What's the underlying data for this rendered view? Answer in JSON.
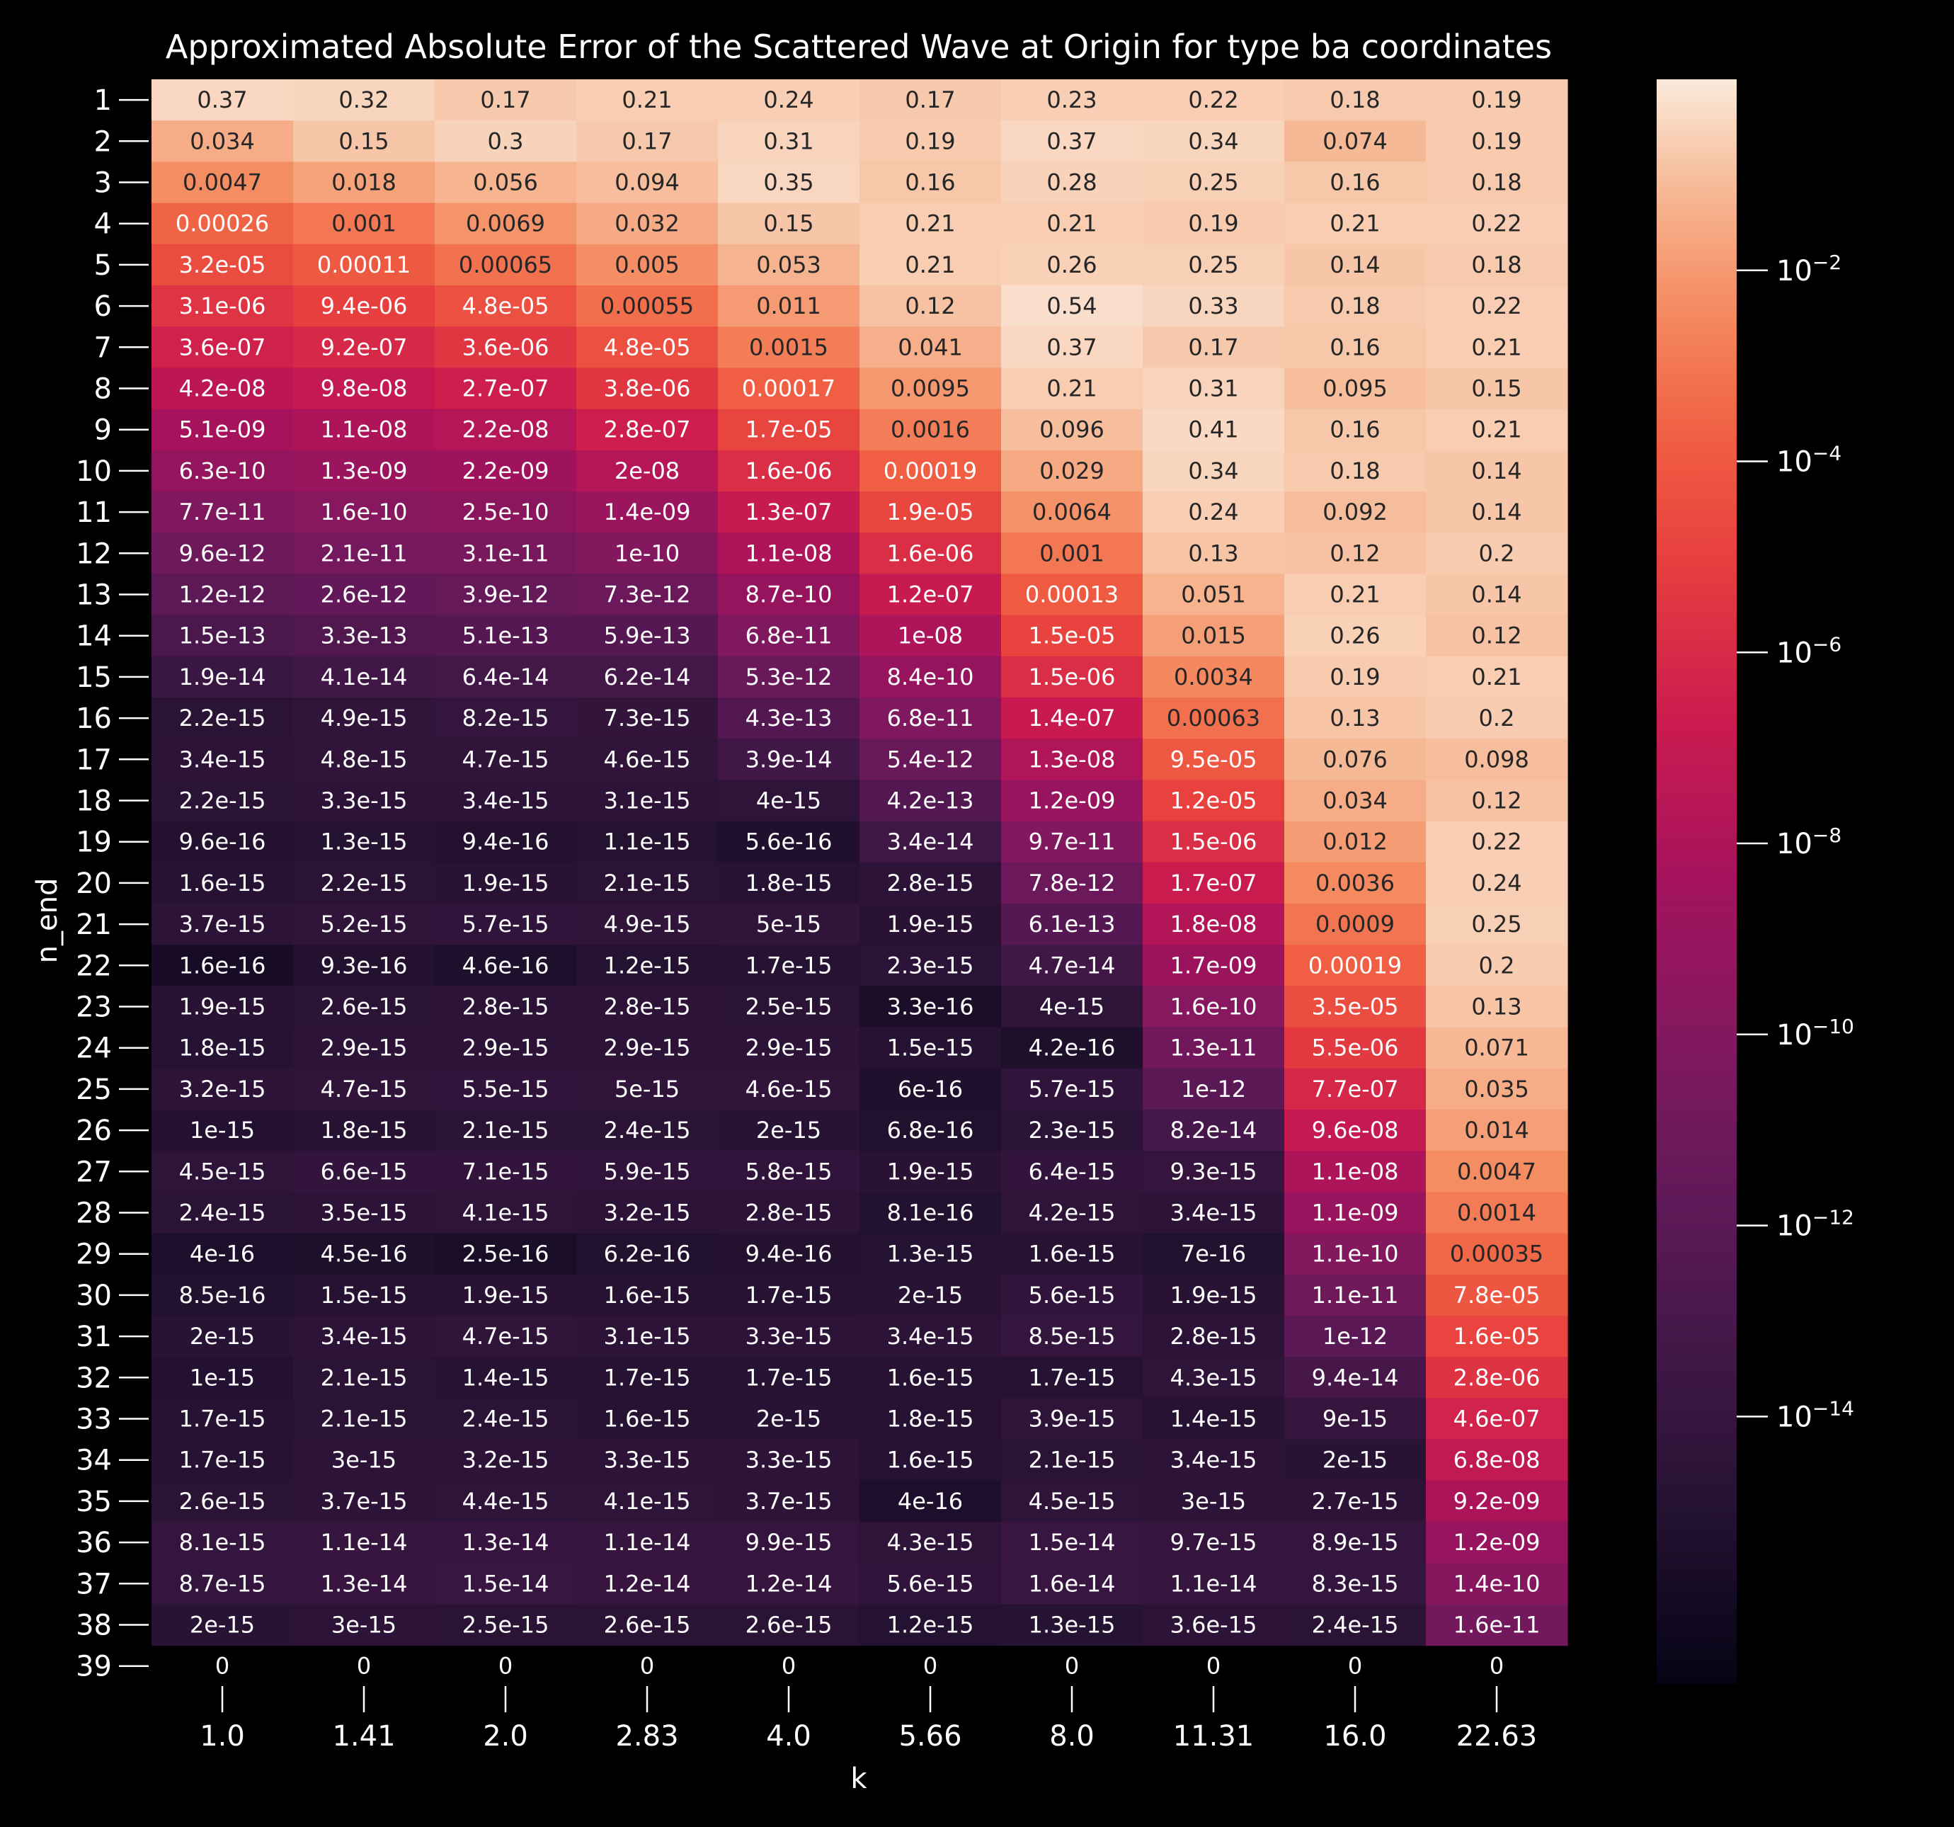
{
  "chart_data": {
    "type": "heatmap",
    "title": "Approximated Absolute Error of the Scattered Wave at Origin for type ba coordinates",
    "xlabel": "k",
    "ylabel": "n_end",
    "color_scale": "log",
    "colormap": "rocket",
    "colorbar_ticks": [
      -2,
      -4,
      -6,
      -8,
      -10,
      -12,
      -14
    ],
    "colorbar_range_log10": [
      -16.8,
      0.0
    ],
    "x_categories": [
      "1.0",
      "1.41",
      "2.0",
      "2.83",
      "4.0",
      "5.66",
      "8.0",
      "11.31",
      "16.0",
      "22.63"
    ],
    "y_categories": [
      "1",
      "2",
      "3",
      "4",
      "5",
      "6",
      "7",
      "8",
      "9",
      "10",
      "11",
      "12",
      "13",
      "14",
      "15",
      "16",
      "17",
      "18",
      "19",
      "20",
      "21",
      "22",
      "23",
      "24",
      "25",
      "26",
      "27",
      "28",
      "29",
      "30",
      "31",
      "32",
      "33",
      "34",
      "35",
      "36",
      "37",
      "38",
      "39"
    ],
    "values": [
      [
        "0.37",
        "0.32",
        "0.17",
        "0.21",
        "0.24",
        "0.17",
        "0.23",
        "0.22",
        "0.18",
        "0.19"
      ],
      [
        "0.034",
        "0.15",
        "0.3",
        "0.17",
        "0.31",
        "0.19",
        "0.37",
        "0.34",
        "0.074",
        "0.19"
      ],
      [
        "0.0047",
        "0.018",
        "0.056",
        "0.094",
        "0.35",
        "0.16",
        "0.28",
        "0.25",
        "0.16",
        "0.18"
      ],
      [
        "0.00026",
        "0.001",
        "0.0069",
        "0.032",
        "0.15",
        "0.21",
        "0.21",
        "0.19",
        "0.21",
        "0.22"
      ],
      [
        "3.2e-05",
        "0.00011",
        "0.00065",
        "0.005",
        "0.053",
        "0.21",
        "0.26",
        "0.25",
        "0.14",
        "0.18"
      ],
      [
        "3.1e-06",
        "9.4e-06",
        "4.8e-05",
        "0.00055",
        "0.011",
        "0.12",
        "0.54",
        "0.33",
        "0.18",
        "0.22"
      ],
      [
        "3.6e-07",
        "9.2e-07",
        "3.6e-06",
        "4.8e-05",
        "0.0015",
        "0.041",
        "0.37",
        "0.17",
        "0.16",
        "0.21"
      ],
      [
        "4.2e-08",
        "9.8e-08",
        "2.7e-07",
        "3.8e-06",
        "0.00017",
        "0.0095",
        "0.21",
        "0.31",
        "0.095",
        "0.15"
      ],
      [
        "5.1e-09",
        "1.1e-08",
        "2.2e-08",
        "2.8e-07",
        "1.7e-05",
        "0.0016",
        "0.096",
        "0.41",
        "0.16",
        "0.21"
      ],
      [
        "6.3e-10",
        "1.3e-09",
        "2.2e-09",
        "2e-08",
        "1.6e-06",
        "0.00019",
        "0.029",
        "0.34",
        "0.18",
        "0.14"
      ],
      [
        "7.7e-11",
        "1.6e-10",
        "2.5e-10",
        "1.4e-09",
        "1.3e-07",
        "1.9e-05",
        "0.0064",
        "0.24",
        "0.092",
        "0.14"
      ],
      [
        "9.6e-12",
        "2.1e-11",
        "3.1e-11",
        "1e-10",
        "1.1e-08",
        "1.6e-06",
        "0.001",
        "0.13",
        "0.12",
        "0.2"
      ],
      [
        "1.2e-12",
        "2.6e-12",
        "3.9e-12",
        "7.3e-12",
        "8.7e-10",
        "1.2e-07",
        "0.00013",
        "0.051",
        "0.21",
        "0.14"
      ],
      [
        "1.5e-13",
        "3.3e-13",
        "5.1e-13",
        "5.9e-13",
        "6.8e-11",
        "1e-08",
        "1.5e-05",
        "0.015",
        "0.26",
        "0.12"
      ],
      [
        "1.9e-14",
        "4.1e-14",
        "6.4e-14",
        "6.2e-14",
        "5.3e-12",
        "8.4e-10",
        "1.5e-06",
        "0.0034",
        "0.19",
        "0.21"
      ],
      [
        "2.2e-15",
        "4.9e-15",
        "8.2e-15",
        "7.3e-15",
        "4.3e-13",
        "6.8e-11",
        "1.4e-07",
        "0.00063",
        "0.13",
        "0.2"
      ],
      [
        "3.4e-15",
        "4.8e-15",
        "4.7e-15",
        "4.6e-15",
        "3.9e-14",
        "5.4e-12",
        "1.3e-08",
        "9.5e-05",
        "0.076",
        "0.098"
      ],
      [
        "2.2e-15",
        "3.3e-15",
        "3.4e-15",
        "3.1e-15",
        "4e-15",
        "4.2e-13",
        "1.2e-09",
        "1.2e-05",
        "0.034",
        "0.12"
      ],
      [
        "9.6e-16",
        "1.3e-15",
        "9.4e-16",
        "1.1e-15",
        "5.6e-16",
        "3.4e-14",
        "9.7e-11",
        "1.5e-06",
        "0.012",
        "0.22"
      ],
      [
        "1.6e-15",
        "2.2e-15",
        "1.9e-15",
        "2.1e-15",
        "1.8e-15",
        "2.8e-15",
        "7.8e-12",
        "1.7e-07",
        "0.0036",
        "0.24"
      ],
      [
        "3.7e-15",
        "5.2e-15",
        "5.7e-15",
        "4.9e-15",
        "5e-15",
        "1.9e-15",
        "6.1e-13",
        "1.8e-08",
        "0.0009",
        "0.25"
      ],
      [
        "1.6e-16",
        "9.3e-16",
        "4.6e-16",
        "1.2e-15",
        "1.7e-15",
        "2.3e-15",
        "4.7e-14",
        "1.7e-09",
        "0.00019",
        "0.2"
      ],
      [
        "1.9e-15",
        "2.6e-15",
        "2.8e-15",
        "2.8e-15",
        "2.5e-15",
        "3.3e-16",
        "4e-15",
        "1.6e-10",
        "3.5e-05",
        "0.13"
      ],
      [
        "1.8e-15",
        "2.9e-15",
        "2.9e-15",
        "2.9e-15",
        "2.9e-15",
        "1.5e-15",
        "4.2e-16",
        "1.3e-11",
        "5.5e-06",
        "0.071"
      ],
      [
        "3.2e-15",
        "4.7e-15",
        "5.5e-15",
        "5e-15",
        "4.6e-15",
        "6e-16",
        "5.7e-15",
        "1e-12",
        "7.7e-07",
        "0.035"
      ],
      [
        "1e-15",
        "1.8e-15",
        "2.1e-15",
        "2.4e-15",
        "2e-15",
        "6.8e-16",
        "2.3e-15",
        "8.2e-14",
        "9.6e-08",
        "0.014"
      ],
      [
        "4.5e-15",
        "6.6e-15",
        "7.1e-15",
        "5.9e-15",
        "5.8e-15",
        "1.9e-15",
        "6.4e-15",
        "9.3e-15",
        "1.1e-08",
        "0.0047"
      ],
      [
        "2.4e-15",
        "3.5e-15",
        "4.1e-15",
        "3.2e-15",
        "2.8e-15",
        "8.1e-16",
        "4.2e-15",
        "3.4e-15",
        "1.1e-09",
        "0.0014"
      ],
      [
        "4e-16",
        "4.5e-16",
        "2.5e-16",
        "6.2e-16",
        "9.4e-16",
        "1.3e-15",
        "1.6e-15",
        "7e-16",
        "1.1e-10",
        "0.00035"
      ],
      [
        "8.5e-16",
        "1.5e-15",
        "1.9e-15",
        "1.6e-15",
        "1.7e-15",
        "2e-15",
        "5.6e-15",
        "1.9e-15",
        "1.1e-11",
        "7.8e-05"
      ],
      [
        "2e-15",
        "3.4e-15",
        "4.7e-15",
        "3.1e-15",
        "3.3e-15",
        "3.4e-15",
        "8.5e-15",
        "2.8e-15",
        "1e-12",
        "1.6e-05"
      ],
      [
        "1e-15",
        "2.1e-15",
        "1.4e-15",
        "1.7e-15",
        "1.7e-15",
        "1.6e-15",
        "1.7e-15",
        "4.3e-15",
        "9.4e-14",
        "2.8e-06"
      ],
      [
        "1.7e-15",
        "2.1e-15",
        "2.4e-15",
        "1.6e-15",
        "2e-15",
        "1.8e-15",
        "3.9e-15",
        "1.4e-15",
        "9e-15",
        "4.6e-07"
      ],
      [
        "1.7e-15",
        "3e-15",
        "3.2e-15",
        "3.3e-15",
        "3.3e-15",
        "1.6e-15",
        "2.1e-15",
        "3.4e-15",
        "2e-15",
        "6.8e-08"
      ],
      [
        "2.6e-15",
        "3.7e-15",
        "4.4e-15",
        "4.1e-15",
        "3.7e-15",
        "4e-16",
        "4.5e-15",
        "3e-15",
        "2.7e-15",
        "9.2e-09"
      ],
      [
        "8.1e-15",
        "1.1e-14",
        "1.3e-14",
        "1.1e-14",
        "9.9e-15",
        "4.3e-15",
        "1.5e-14",
        "9.7e-15",
        "8.9e-15",
        "1.2e-09"
      ],
      [
        "8.7e-15",
        "1.3e-14",
        "1.5e-14",
        "1.2e-14",
        "1.2e-14",
        "5.6e-15",
        "1.6e-14",
        "1.1e-14",
        "8.3e-15",
        "1.4e-10"
      ],
      [
        "2e-15",
        "3e-15",
        "2.5e-15",
        "2.6e-15",
        "2.6e-15",
        "1.2e-15",
        "1.3e-15",
        "3.6e-15",
        "2.4e-15",
        "1.6e-11"
      ],
      [
        "0",
        "0",
        "0",
        "0",
        "0",
        "0",
        "0",
        "0",
        "0",
        "0"
      ]
    ]
  }
}
